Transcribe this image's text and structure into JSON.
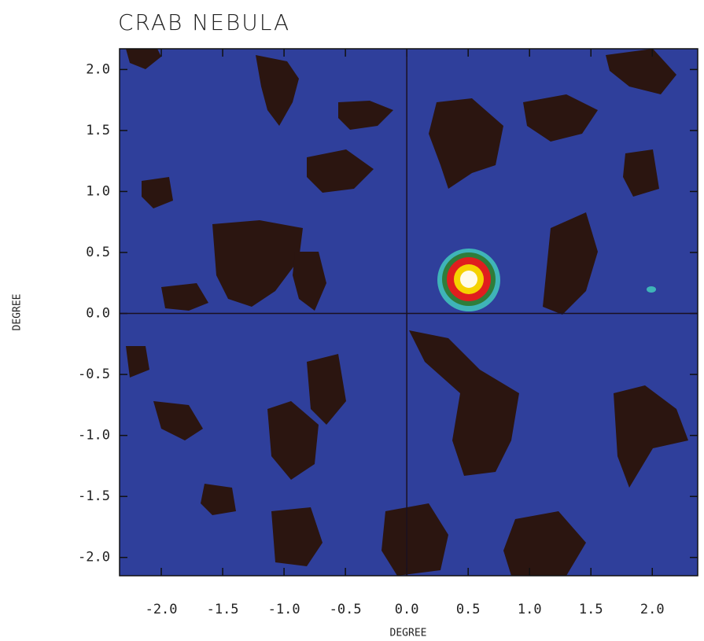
{
  "chart_data": {
    "type": "heatmap",
    "title": "CRAB   NEBULA",
    "x_label": "DEGREE",
    "y_label": "DEGREE",
    "background_color": "#2f3f9b",
    "xlim": [
      -2.34,
      2.37
    ],
    "ylim": [
      -2.15,
      2.17
    ],
    "xticks": [
      {
        "value": -2,
        "label": "-2.0"
      },
      -1.5,
      {
        "value": -1,
        "label": "-1.0"
      },
      -0.5,
      {
        "value": 0,
        "label": "0.0"
      },
      0.5,
      {
        "value": 1,
        "label": "1.0"
      },
      1.5,
      {
        "value": 2,
        "label": "2.0"
      }
    ],
    "yticks": [
      {
        "value": -2,
        "label": "-2.0"
      },
      -1.5,
      {
        "value": -1,
        "label": "-1.0"
      },
      -0.5,
      {
        "value": 0,
        "label": "0.0"
      },
      0.5,
      {
        "value": 1,
        "label": "1.0"
      },
      1.5,
      {
        "value": 2,
        "label": "2.0"
      }
    ]
  }
}
